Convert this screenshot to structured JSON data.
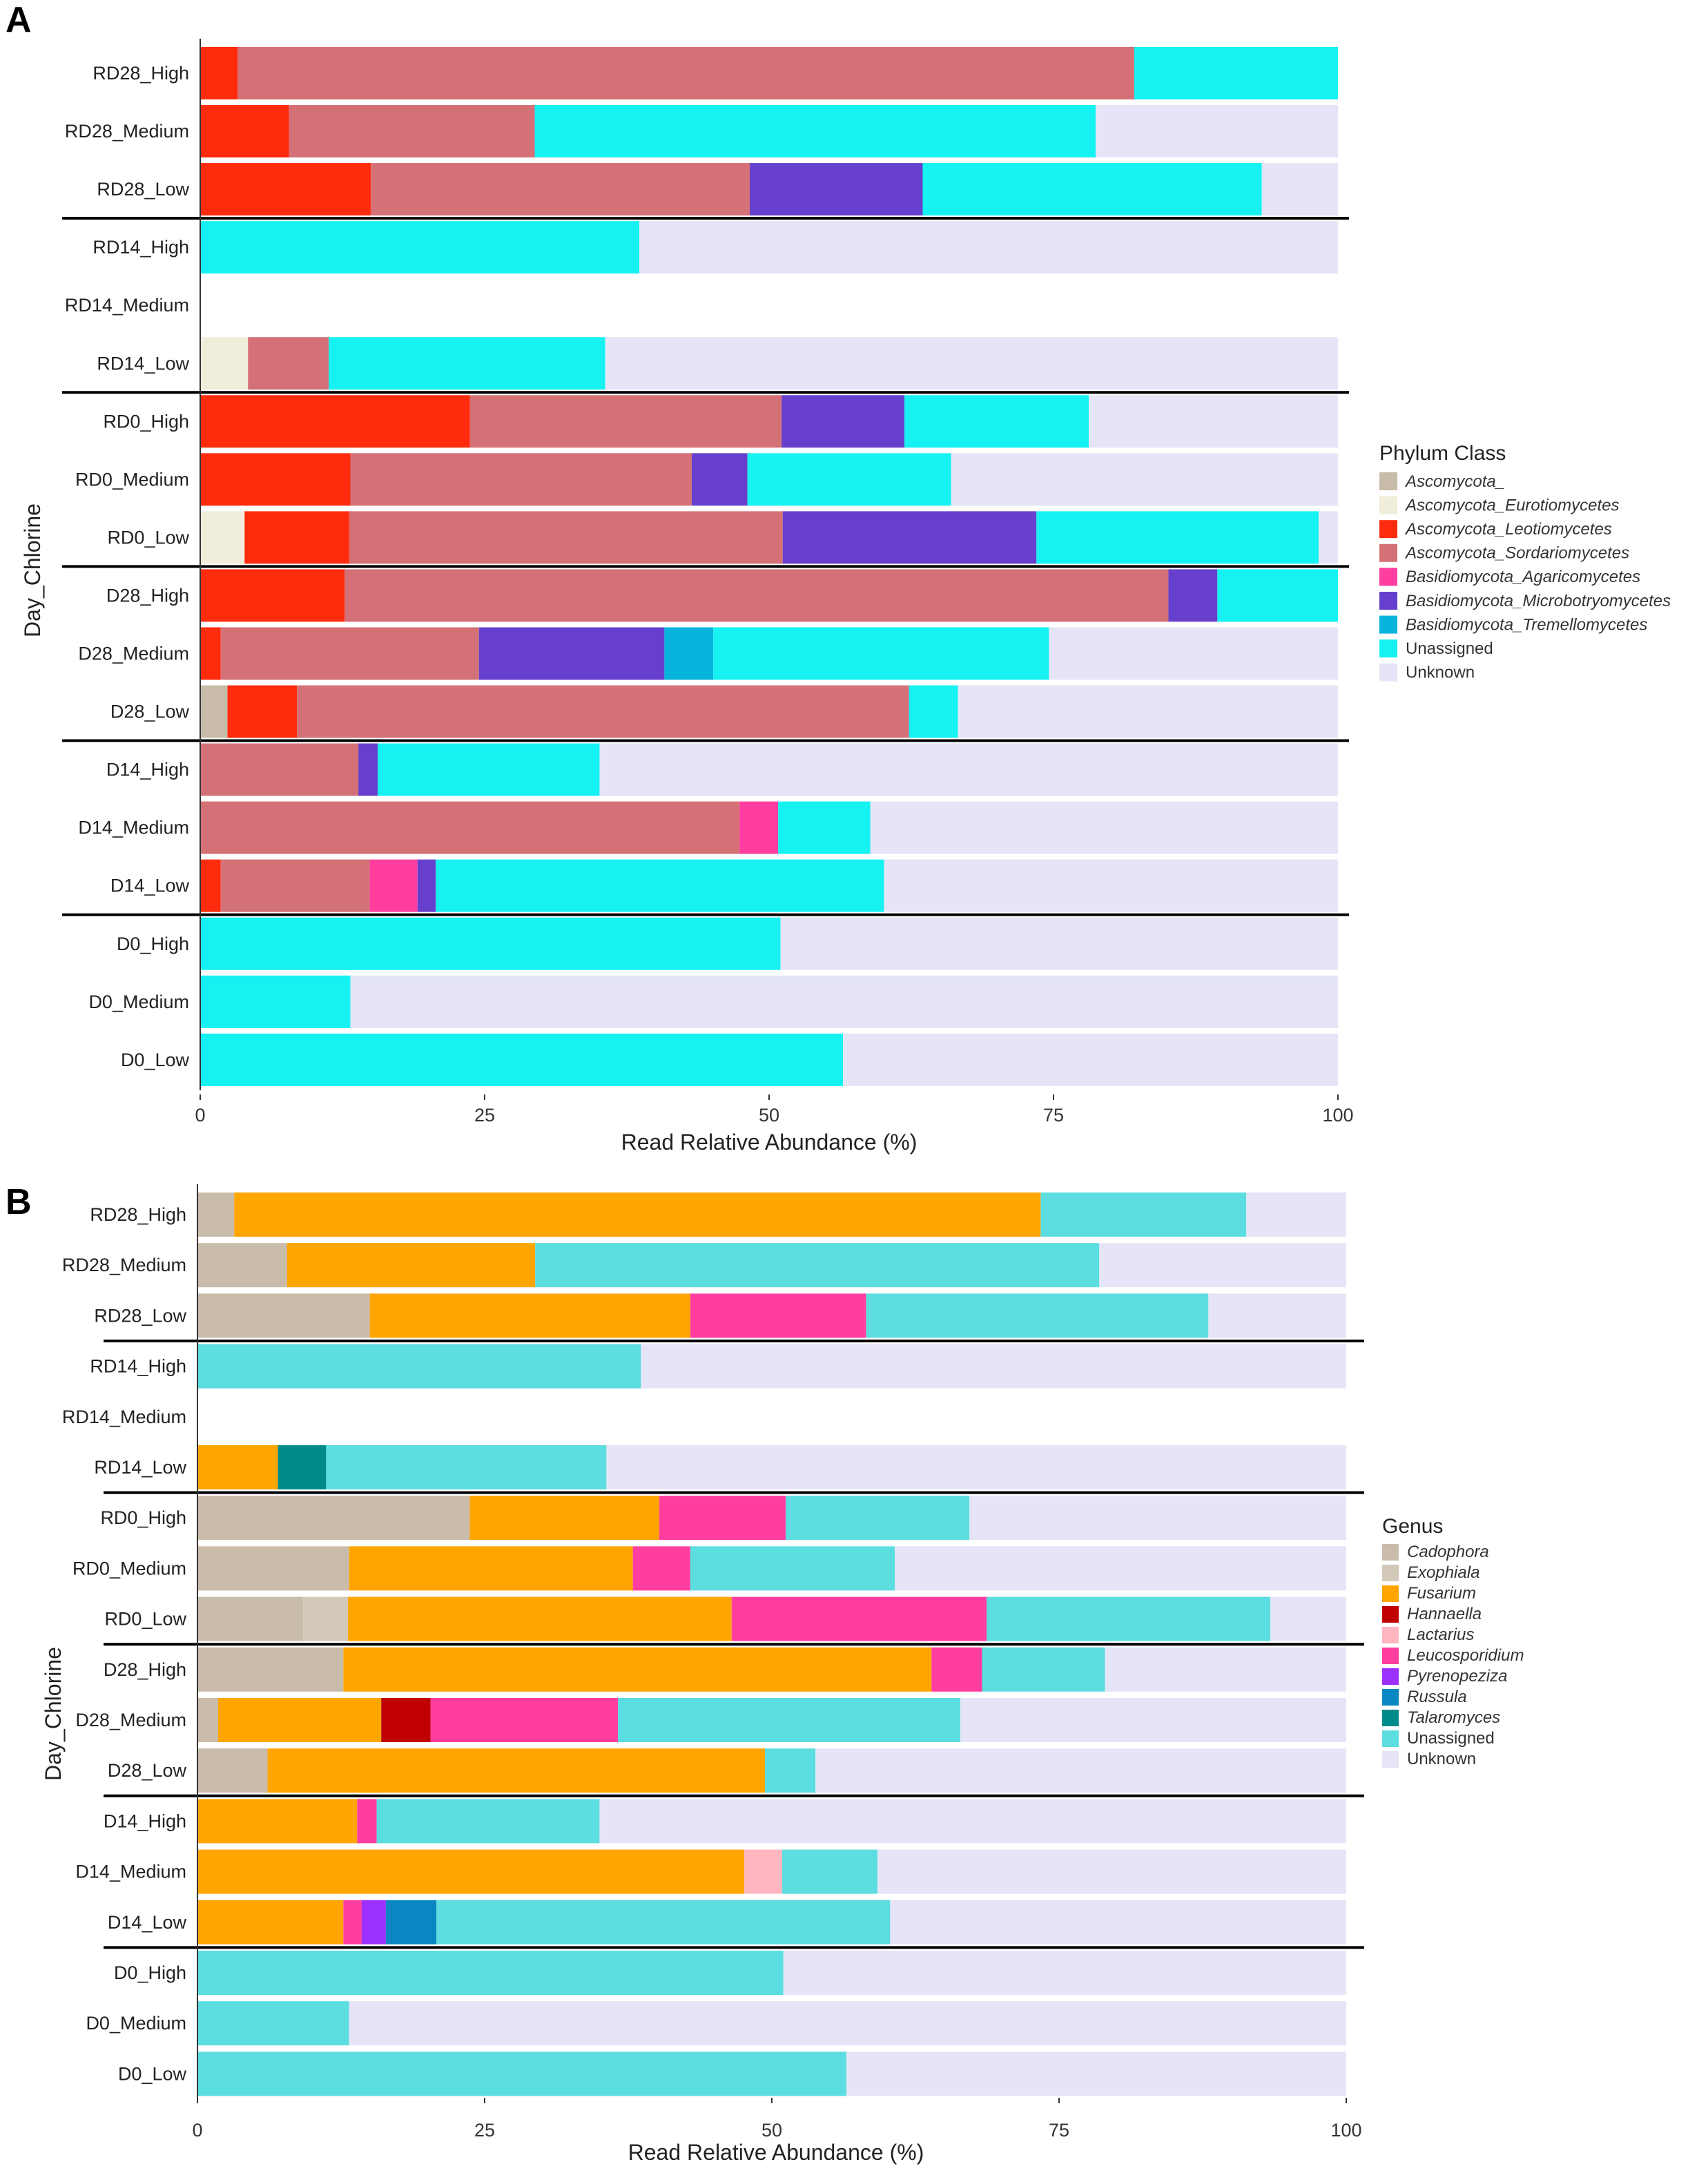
{
  "chart_data": [
    {
      "type": "bar",
      "orientation": "horizontal",
      "stacked": true,
      "panel_label": "A",
      "xlabel": "Read Relative Abundance (%)",
      "ylabel": "Day_Chlorine",
      "xlim": [
        0,
        100
      ],
      "xticks": [
        0,
        25,
        50,
        75,
        100
      ],
      "legend_title": "Phylum  Class",
      "legend_position": "right",
      "categories": [
        "RD28_High",
        "RD28_Medium",
        "RD28_Low",
        "RD14_High",
        "RD14_Medium",
        "RD14_Low",
        "RD0_High",
        "RD0_Medium",
        "RD0_Low",
        "D28_High",
        "D28_Medium",
        "D28_Low",
        "D14_High",
        "D14_Medium",
        "D14_Low",
        "D0_High",
        "D0_Medium",
        "D0_Low"
      ],
      "series": [
        {
          "name": "Ascomycota_",
          "italic": true,
          "color": "#c8bba9",
          "values": [
            0,
            0,
            0,
            0,
            0,
            0,
            0,
            0,
            0,
            0,
            0,
            2.4,
            0,
            0,
            0,
            0,
            0,
            0
          ]
        },
        {
          "name": "Ascomycota_Eurotiomycetes",
          "italic": true,
          "color": "#f1eddb",
          "values": [
            0,
            0,
            0,
            0,
            0,
            4.2,
            0,
            0,
            3.9,
            0,
            0,
            0,
            0,
            0,
            0,
            0,
            0,
            0
          ]
        },
        {
          "name": "Ascomycota_Leotiomycetes",
          "italic": true,
          "color": "#ff2b0d",
          "values": [
            3.3,
            7.8,
            15,
            0,
            0,
            0,
            23.7,
            13.2,
            9.2,
            12.7,
            1.8,
            6.1,
            0,
            0,
            1.8,
            0,
            0,
            0
          ]
        },
        {
          "name": "Ascomycota_Sordariomycetes",
          "italic": true,
          "color": "#d47176",
          "values": [
            78.8,
            21.6,
            33.3,
            0,
            0,
            7.1,
            27.4,
            30,
            38.1,
            72.4,
            22.7,
            53.8,
            13.9,
            47.4,
            13.1,
            0,
            0,
            0
          ]
        },
        {
          "name": "Basidiomycota_Agaricomycetes",
          "italic": true,
          "color": "#ff3ea0",
          "values": [
            0,
            0,
            0,
            0,
            0,
            0,
            0,
            0,
            0,
            0,
            0,
            0,
            0,
            3.4,
            4.2,
            0,
            0,
            0
          ]
        },
        {
          "name": "Basidiomycota_Microbotryomycetes",
          "italic": true,
          "color": "#6640cc",
          "values": [
            0,
            0,
            15.2,
            0,
            0,
            0,
            10.8,
            4.9,
            22.3,
            4.3,
            16.3,
            0,
            1.7,
            0,
            1.6,
            0,
            0,
            0
          ]
        },
        {
          "name": "Basidiomycota_Tremellomycetes",
          "italic": true,
          "color": "#06b4dc",
          "values": [
            0,
            0,
            0,
            0,
            0,
            0,
            0,
            0,
            0,
            0,
            4.3,
            0,
            0,
            0,
            0,
            0,
            0,
            0
          ]
        },
        {
          "name": "Unassigned",
          "italic": false,
          "color": "#16f2f2",
          "values": [
            17.9,
            49.3,
            29.8,
            38.6,
            0,
            24.3,
            16.2,
            17.9,
            24.8,
            10.6,
            29.5,
            4.3,
            19.5,
            8.1,
            39.4,
            51,
            13.2,
            56.5
          ]
        },
        {
          "name": "Unknown",
          "italic": false,
          "color": "#e5e5f7",
          "values": [
            0,
            21.3,
            6.7,
            61.4,
            0,
            64.4,
            21.9,
            34,
            1.7,
            0,
            25.4,
            33.4,
            64.9,
            41.1,
            39.9,
            49,
            86.8,
            43.5
          ]
        }
      ]
    },
    {
      "type": "bar",
      "orientation": "horizontal",
      "stacked": true,
      "panel_label": "B",
      "xlabel": "Read Relative Abundance (%)",
      "ylabel": "Day_Chlorine",
      "xlim": [
        0,
        100
      ],
      "xticks": [
        0,
        25,
        50,
        75,
        100
      ],
      "legend_title": "Genus",
      "legend_position": "right",
      "categories": [
        "RD28_High",
        "RD28_Medium",
        "RD28_Low",
        "RD14_High",
        "RD14_Medium",
        "RD14_Low",
        "RD0_High",
        "RD0_Medium",
        "RD0_Low",
        "D28_High",
        "D28_Medium",
        "D28_Low",
        "D14_High",
        "D14_Medium",
        "D14_Low",
        "D0_High",
        "D0_Medium",
        "D0_Low"
      ],
      "series": [
        {
          "name": "Cadophora",
          "italic": true,
          "color": "#c9bcab",
          "values": [
            3.2,
            7.8,
            15,
            0,
            0,
            0,
            23.7,
            13.2,
            9.2,
            12.7,
            1.8,
            6.1,
            0,
            0,
            0,
            0,
            0,
            0
          ]
        },
        {
          "name": "Exophiala",
          "italic": true,
          "color": "#d3c9b8",
          "values": [
            0,
            0,
            0,
            0,
            0,
            0,
            0,
            0,
            3.9,
            0,
            0,
            0,
            0,
            0,
            0,
            0,
            0,
            0
          ]
        },
        {
          "name": "Fusarium",
          "italic": true,
          "color": "#ffa500",
          "values": [
            70.2,
            21.6,
            27.9,
            0,
            0,
            7,
            16.5,
            24.7,
            33.4,
            51.2,
            14.2,
            43.3,
            13.9,
            47.6,
            12.7,
            0,
            0,
            0
          ]
        },
        {
          "name": "Hannaella",
          "italic": true,
          "color": "#c00000",
          "values": [
            0,
            0,
            0,
            0,
            0,
            0,
            0,
            0,
            0,
            0,
            4.3,
            0,
            0,
            0,
            0,
            0,
            0,
            0
          ]
        },
        {
          "name": "Lactarius",
          "italic": true,
          "color": "#ffb6c1",
          "values": [
            0,
            0,
            0,
            0,
            0,
            0,
            0,
            0,
            0,
            0,
            0,
            0,
            0,
            3.3,
            0,
            0,
            0,
            0
          ]
        },
        {
          "name": "Leucosporidium",
          "italic": true,
          "color": "#ff3ea0",
          "values": [
            0,
            0,
            15.3,
            0,
            0,
            0,
            11,
            5,
            22.2,
            4.4,
            16.3,
            0,
            1.7,
            0,
            1.6,
            0,
            0,
            0
          ]
        },
        {
          "name": "Pyrenopeziza",
          "italic": true,
          "color": "#9b30ff",
          "values": [
            0,
            0,
            0,
            0,
            0,
            0,
            0,
            0,
            0,
            0,
            0,
            0,
            0,
            0,
            2.1,
            0,
            0,
            0
          ]
        },
        {
          "name": "Russula",
          "italic": true,
          "color": "#0987c2",
          "values": [
            0,
            0,
            0,
            0,
            0,
            0,
            0,
            0,
            0,
            0,
            0,
            0,
            0,
            0,
            4.4,
            0,
            0,
            0
          ]
        },
        {
          "name": "Talaromyces",
          "italic": true,
          "color": "#008b8b",
          "values": [
            0,
            0,
            0,
            0,
            0,
            4.2,
            0,
            0,
            0,
            0,
            0,
            0,
            0,
            0,
            0,
            0,
            0,
            0
          ]
        },
        {
          "name": "Unassigned",
          "italic": false,
          "color": "#5cdde0",
          "values": [
            17.9,
            49.1,
            29.8,
            38.6,
            0,
            24.4,
            16,
            17.8,
            24.7,
            10.7,
            29.8,
            4.4,
            19.4,
            8.3,
            39.5,
            51,
            13.2,
            56.5
          ]
        },
        {
          "name": "Unknown",
          "italic": false,
          "color": "#e5e5f7",
          "values": [
            8.7,
            21.5,
            12,
            61.4,
            0,
            64.4,
            32.8,
            39.3,
            6.6,
            21,
            33.6,
            46.2,
            65,
            40.8,
            39.7,
            49,
            86.8,
            43.5
          ]
        }
      ]
    }
  ]
}
